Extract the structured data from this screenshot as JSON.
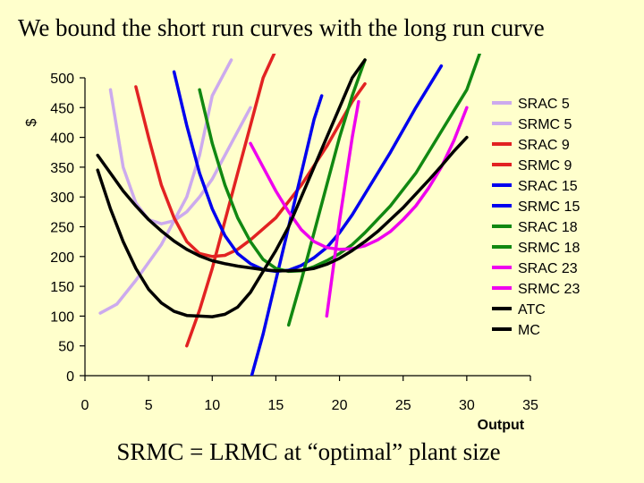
{
  "title": "We bound the short run curves with the long run curve",
  "footer": "SRMC = LRMC at “optimal” plant size",
  "chart_data": {
    "type": "line",
    "xlabel": "Output",
    "ylabel": "$",
    "xlim": [
      0,
      35
    ],
    "ylim": [
      0,
      500
    ],
    "xticks": [
      "0",
      "5",
      "10",
      "15",
      "20",
      "25",
      "30",
      "35"
    ],
    "yticks": [
      "0",
      "50",
      "100",
      "150",
      "200",
      "250",
      "300",
      "350",
      "400",
      "450",
      "500"
    ],
    "legend_position": "right",
    "series": [
      {
        "name": "SRAC 5",
        "color": "#CCAAEE",
        "points": [
          [
            2,
            480
          ],
          [
            3,
            350
          ],
          [
            4,
            290
          ],
          [
            5,
            262
          ],
          [
            6,
            255
          ],
          [
            7,
            260
          ],
          [
            8,
            275
          ],
          [
            9,
            300
          ],
          [
            10,
            330
          ],
          [
            12,
            410
          ],
          [
            13,
            450
          ]
        ]
      },
      {
        "name": "SRMC 5",
        "color": "#CCAAEE",
        "points": [
          [
            1.2,
            105
          ],
          [
            2.5,
            120
          ],
          [
            4,
            160
          ],
          [
            6,
            220
          ],
          [
            7,
            260
          ],
          [
            8,
            300
          ],
          [
            9,
            370
          ],
          [
            10,
            470
          ],
          [
            11.5,
            530
          ]
        ]
      },
      {
        "name": "SRAC 9",
        "color": "#E22222",
        "points": [
          [
            4,
            485
          ],
          [
            5,
            400
          ],
          [
            6,
            320
          ],
          [
            7,
            265
          ],
          [
            8,
            225
          ],
          [
            9,
            205
          ],
          [
            10,
            200
          ],
          [
            11,
            202
          ],
          [
            12,
            212
          ],
          [
            13,
            228
          ],
          [
            15,
            265
          ],
          [
            17,
            320
          ],
          [
            19,
            385
          ],
          [
            21,
            460
          ],
          [
            22,
            490
          ]
        ]
      },
      {
        "name": "SRMC 9",
        "color": "#E22222",
        "points": [
          [
            8,
            50
          ],
          [
            9,
            110
          ],
          [
            10,
            180
          ],
          [
            11,
            260
          ],
          [
            12,
            340
          ],
          [
            13,
            420
          ],
          [
            14,
            500
          ],
          [
            15.5,
            570
          ]
        ]
      },
      {
        "name": "SRAC 15",
        "color": "#0000EE",
        "points": [
          [
            7,
            510
          ],
          [
            8,
            420
          ],
          [
            9,
            340
          ],
          [
            10,
            280
          ],
          [
            11,
            235
          ],
          [
            12,
            205
          ],
          [
            13,
            188
          ],
          [
            14,
            178
          ],
          [
            15,
            175
          ],
          [
            16,
            177
          ],
          [
            17,
            185
          ],
          [
            18,
            198
          ],
          [
            19,
            215
          ],
          [
            20,
            240
          ],
          [
            21,
            270
          ],
          [
            22,
            305
          ],
          [
            24,
            375
          ],
          [
            26,
            450
          ],
          [
            28,
            520
          ]
        ]
      },
      {
        "name": "SRMC 15",
        "color": "#0000EE",
        "points": [
          [
            13.1,
            0
          ],
          [
            14,
            70
          ],
          [
            15,
            160
          ],
          [
            16,
            250
          ],
          [
            17,
            340
          ],
          [
            18,
            430
          ],
          [
            18.6,
            470
          ]
        ]
      },
      {
        "name": "SRAC 18",
        "color": "#118811",
        "points": [
          [
            9,
            480
          ],
          [
            10,
            390
          ],
          [
            11,
            320
          ],
          [
            12,
            265
          ],
          [
            13,
            225
          ],
          [
            14,
            195
          ],
          [
            15,
            180
          ],
          [
            16,
            175
          ],
          [
            17,
            176
          ],
          [
            18,
            183
          ],
          [
            19,
            193
          ],
          [
            20,
            205
          ],
          [
            21,
            220
          ],
          [
            22,
            240
          ],
          [
            24,
            285
          ],
          [
            26,
            340
          ],
          [
            28,
            410
          ],
          [
            30,
            480
          ],
          [
            31,
            540
          ]
        ]
      },
      {
        "name": "SRMC 18",
        "color": "#118811",
        "points": [
          [
            16,
            85
          ],
          [
            17,
            160
          ],
          [
            18,
            240
          ],
          [
            19,
            320
          ],
          [
            20,
            400
          ],
          [
            21,
            470
          ],
          [
            22,
            530
          ]
        ]
      },
      {
        "name": "SRAC 23",
        "color": "#EE00EE",
        "points": [
          [
            13,
            390
          ],
          [
            14,
            350
          ],
          [
            15,
            310
          ],
          [
            16,
            275
          ],
          [
            17,
            245
          ],
          [
            18,
            225
          ],
          [
            19,
            215
          ],
          [
            20,
            212
          ],
          [
            21,
            213
          ],
          [
            22,
            218
          ],
          [
            23,
            228
          ],
          [
            24,
            242
          ],
          [
            25,
            262
          ],
          [
            26,
            285
          ],
          [
            27,
            315
          ],
          [
            28,
            350
          ],
          [
            29,
            395
          ],
          [
            30,
            450
          ]
        ]
      },
      {
        "name": "SRMC 23",
        "color": "#EE00EE",
        "points": [
          [
            19,
            100
          ],
          [
            19.5,
            180
          ],
          [
            20,
            260
          ],
          [
            20.5,
            330
          ],
          [
            21,
            400
          ],
          [
            21.5,
            460
          ]
        ]
      },
      {
        "name": "ATC",
        "color": "#000000",
        "points": [
          [
            1,
            370
          ],
          [
            2,
            340
          ],
          [
            3,
            310
          ],
          [
            4,
            285
          ],
          [
            5,
            262
          ],
          [
            6,
            243
          ],
          [
            7,
            226
          ],
          [
            8,
            212
          ],
          [
            9,
            201
          ],
          [
            10,
            193
          ],
          [
            11,
            188
          ],
          [
            12,
            184
          ],
          [
            13,
            181
          ],
          [
            14,
            178
          ],
          [
            15,
            176
          ],
          [
            16,
            176
          ],
          [
            17,
            177
          ],
          [
            18,
            180
          ],
          [
            19,
            187
          ],
          [
            20,
            197
          ],
          [
            21,
            210
          ],
          [
            22,
            225
          ],
          [
            23,
            242
          ],
          [
            24,
            262
          ],
          [
            25,
            282
          ],
          [
            26,
            305
          ],
          [
            27,
            328
          ],
          [
            28,
            352
          ],
          [
            29,
            377
          ],
          [
            30,
            400
          ]
        ]
      },
      {
        "name": "MC",
        "color": "#000000",
        "points": [
          [
            1,
            345
          ],
          [
            2,
            280
          ],
          [
            3,
            225
          ],
          [
            4,
            180
          ],
          [
            5,
            145
          ],
          [
            6,
            122
          ],
          [
            7,
            108
          ],
          [
            8,
            101
          ],
          [
            9,
            100
          ],
          [
            10,
            99
          ],
          [
            11,
            103
          ],
          [
            12,
            115
          ],
          [
            13,
            140
          ],
          [
            14,
            175
          ],
          [
            15,
            210
          ],
          [
            16,
            250
          ],
          [
            17,
            300
          ],
          [
            18,
            350
          ],
          [
            19,
            400
          ],
          [
            20,
            450
          ],
          [
            21,
            500
          ],
          [
            22,
            530
          ]
        ]
      }
    ]
  }
}
